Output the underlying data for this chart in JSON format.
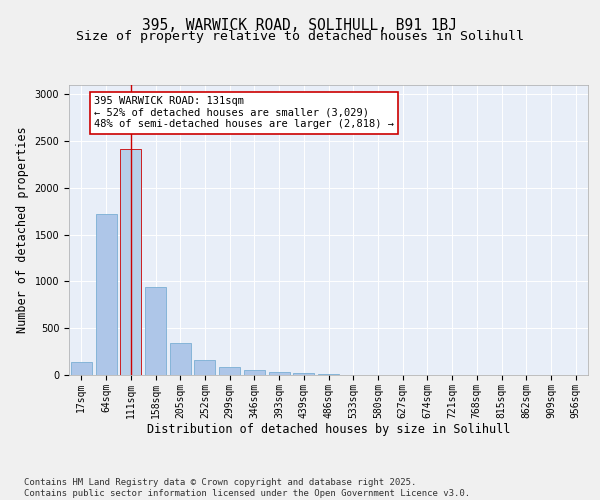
{
  "title1": "395, WARWICK ROAD, SOLIHULL, B91 1BJ",
  "title2": "Size of property relative to detached houses in Solihull",
  "xlabel": "Distribution of detached houses by size in Solihull",
  "ylabel": "Number of detached properties",
  "categories": [
    "17sqm",
    "64sqm",
    "111sqm",
    "158sqm",
    "205sqm",
    "252sqm",
    "299sqm",
    "346sqm",
    "393sqm",
    "439sqm",
    "486sqm",
    "533sqm",
    "580sqm",
    "627sqm",
    "674sqm",
    "721sqm",
    "768sqm",
    "815sqm",
    "862sqm",
    "909sqm",
    "956sqm"
  ],
  "values": [
    140,
    1720,
    2420,
    940,
    340,
    160,
    85,
    50,
    35,
    25,
    15,
    0,
    0,
    0,
    0,
    0,
    0,
    0,
    0,
    0,
    0
  ],
  "bar_color": "#aec6e8",
  "bar_edge_color": "#7bafd4",
  "highlight_bar_index": 2,
  "highlight_color": "#b8cfe8",
  "highlight_edge_color": "#cc0000",
  "vline_color": "#cc0000",
  "annotation_text": "395 WARWICK ROAD: 131sqm\n← 52% of detached houses are smaller (3,029)\n48% of semi-detached houses are larger (2,818) →",
  "annotation_box_facecolor": "#ffffff",
  "annotation_box_edgecolor": "#cc0000",
  "ylim": [
    0,
    3100
  ],
  "yticks": [
    0,
    500,
    1000,
    1500,
    2000,
    2500,
    3000
  ],
  "plot_bgcolor": "#e8eef8",
  "fig_bgcolor": "#f0f0f0",
  "grid_color": "#ffffff",
  "footer_text": "Contains HM Land Registry data © Crown copyright and database right 2025.\nContains public sector information licensed under the Open Government Licence v3.0.",
  "title_fontsize": 10.5,
  "subtitle_fontsize": 9.5,
  "axis_label_fontsize": 8.5,
  "tick_fontsize": 7,
  "annotation_fontsize": 7.5,
  "footer_fontsize": 6.5
}
